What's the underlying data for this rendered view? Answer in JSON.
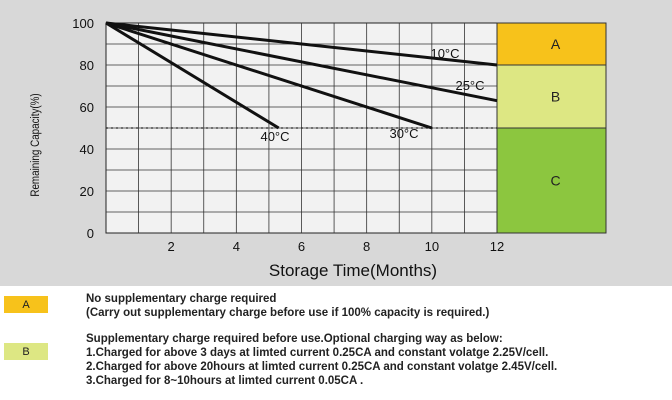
{
  "chart_data": {
    "type": "line",
    "ylabel": "Remaining Capacity(%)",
    "xlabel": "Storage Time(Months)",
    "xlim": [
      0,
      12
    ],
    "ylim": [
      0,
      100
    ],
    "x_ticks": [
      "2",
      "4",
      "6",
      "8",
      "10",
      "12"
    ],
    "y_ticks": [
      "0",
      "20",
      "40",
      "60",
      "80",
      "100"
    ],
    "grid": true,
    "threshold_line": 50,
    "series": [
      {
        "name": "10°C",
        "x": [
          0,
          12
        ],
        "y": [
          100,
          80
        ]
      },
      {
        "name": "25°C",
        "x": [
          0,
          12
        ],
        "y": [
          100,
          63
        ]
      },
      {
        "name": "30°C",
        "x": [
          0,
          10
        ],
        "y": [
          100,
          50
        ]
      },
      {
        "name": "40°C",
        "x": [
          0,
          5.3
        ],
        "y": [
          100,
          50
        ]
      }
    ],
    "zones": [
      {
        "label": "A",
        "from": 80,
        "to": 100,
        "color": "#f7c21b"
      },
      {
        "label": "B",
        "from": 50,
        "to": 80,
        "color": "#dde783"
      },
      {
        "label": "C",
        "from": 0,
        "to": 50,
        "color": "#8cc63f"
      }
    ]
  },
  "legend": {
    "A": {
      "swatch_label": "A",
      "color": "#f7c21b",
      "lines": [
        "No supplementary charge required",
        "(Carry out supplementary charge before use if 100% capacity is required.)"
      ]
    },
    "B": {
      "swatch_label": "B",
      "color": "#dde783",
      "lines": [
        "Supplementary charge required before use.Optional charging way as below:",
        "1.Charged for above 3 days at limted current 0.25CA and constant volatge 2.25V/cell.",
        "2.Charged for above 20hours at limted current 0.25CA and constant volatge 2.45V/cell.",
        "3.Charged for 8~10hours at limted current 0.05CA ."
      ]
    }
  }
}
